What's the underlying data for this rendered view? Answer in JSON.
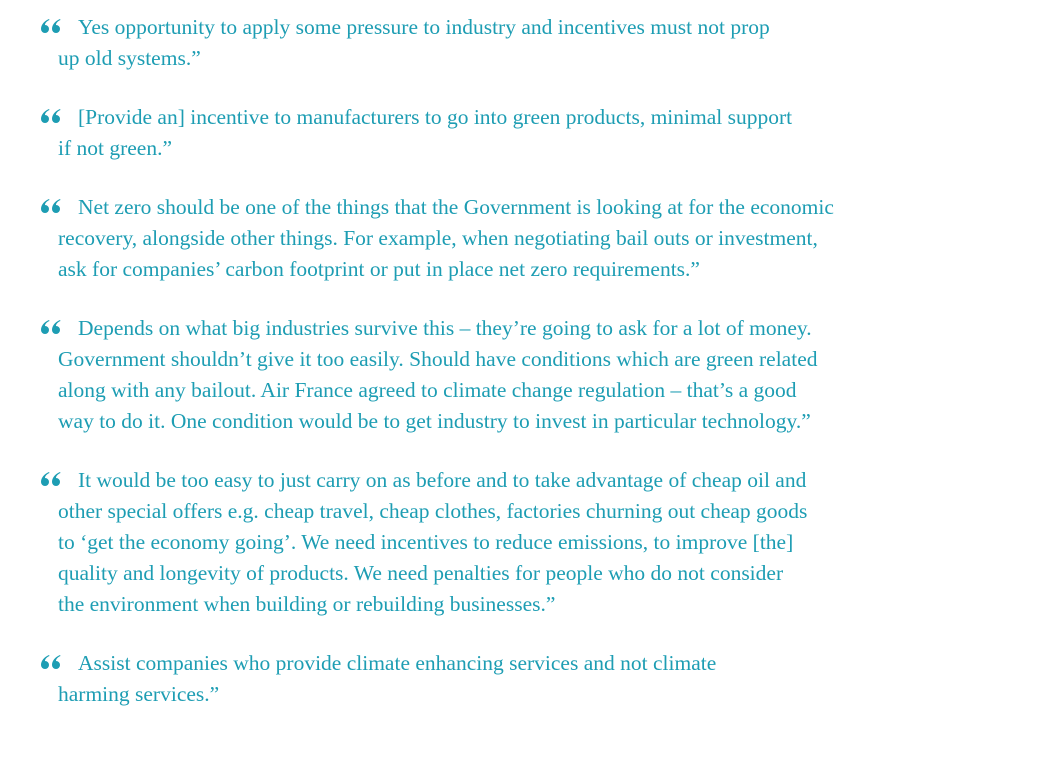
{
  "quotes": [
    {
      "lines": [
        "Yes opportunity to apply some pressure to industry and incentives must not prop",
        "up old systems.”"
      ]
    },
    {
      "lines": [
        "[Provide an] incentive to manufacturers to go into green products, minimal support",
        "if not green.”"
      ]
    },
    {
      "lines": [
        "Net zero should be one of the things that the Government is looking at for the economic",
        "recovery, alongside other things. For example, when negotiating bail outs or investment,",
        "ask for companies’ carbon footprint or put in place net zero requirements.”"
      ]
    },
    {
      "lines": [
        "Depends on what big industries survive this – they’re going to ask for a lot of money.",
        "Government shouldn’t give it too easily. Should have conditions which are green related",
        "along with any bailout. Air France agreed to climate change regulation – that’s a good",
        "way to do it. One condition would be to get industry to invest in particular technology.”"
      ]
    },
    {
      "lines": [
        "It would be too easy to just carry on as before and to take advantage of cheap oil and",
        "other special offers e.g. cheap travel, cheap clothes, factories churning out cheap goods",
        "to ‘get the economy going’. We need incentives to reduce emissions, to improve [the]",
        "quality and longevity of products. We need penalties for people who do not consider",
        "the environment when building or rebuilding businesses.”"
      ]
    },
    {
      "lines": [
        "Assist companies who provide climate enhancing services and not climate",
        "harming services.”"
      ]
    }
  ]
}
